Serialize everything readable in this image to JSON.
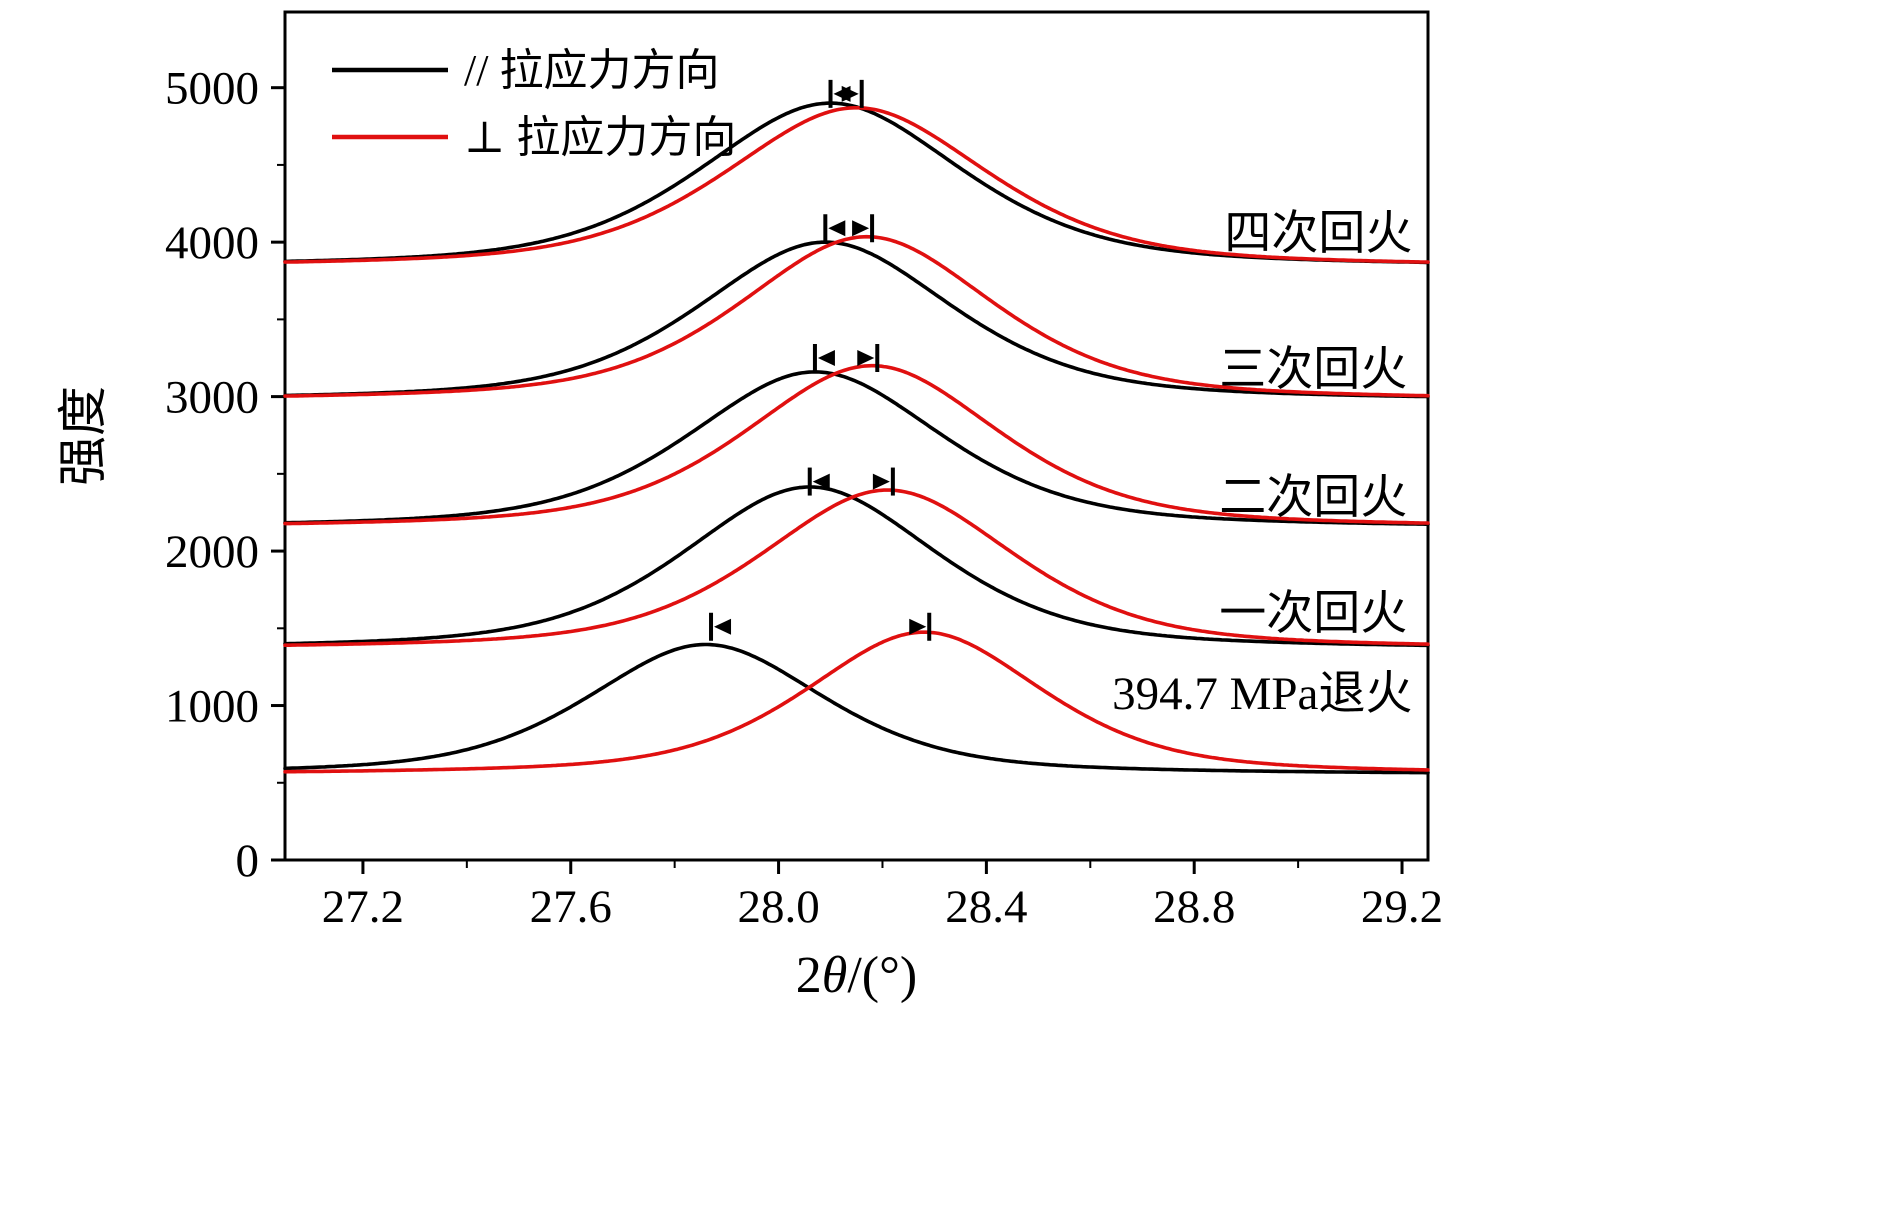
{
  "chart_data": {
    "type": "line",
    "title": "",
    "xlabel": "2θ/(°)",
    "ylabel": "强度",
    "xlim": [
      27.05,
      29.25
    ],
    "ylim": [
      0,
      5490
    ],
    "xticks": [
      "27.2",
      "27.6",
      "28.0",
      "28.4",
      "28.8",
      "29.2"
    ],
    "xtick_values": [
      27.2,
      27.6,
      28.0,
      28.4,
      28.8,
      29.2
    ],
    "minor_xtick_values": [
      27.4,
      27.8,
      28.2,
      28.6,
      29.0
    ],
    "yticks": [
      "0",
      "1000",
      "2000",
      "3000",
      "4000",
      "5000"
    ],
    "ytick_values": [
      0,
      1000,
      2000,
      3000,
      4000,
      5000
    ],
    "minor_ytick_values": [
      500,
      1500,
      2500,
      3500,
      4500
    ],
    "grid": false,
    "colors": {
      "parallel": "#000000",
      "perpendicular": "#e01010"
    },
    "legend": {
      "position": "top-left",
      "entries": [
        {
          "series": "parallel",
          "label": "// 拉应力方向",
          "color": "#000000"
        },
        {
          "series": "perpendicular",
          "label": "⊥ 拉应力方向",
          "color": "#e01010"
        }
      ]
    },
    "groups": [
      {
        "label": "394.7 MPa退火",
        "label_anchor": {
          "x": 29.22,
          "y": 1080
        },
        "baseline": 550,
        "peaks": [
          {
            "series": "parallel",
            "center": 27.86,
            "amplitude": 845,
            "hwhm": 0.27
          },
          {
            "series": "perpendicular",
            "center": 28.28,
            "amplitude": 925,
            "hwhm": 0.27
          }
        ],
        "peak_markers": {
          "left_x": 27.87,
          "right_x": 28.29,
          "y": 1510
        }
      },
      {
        "label": "一次回火",
        "label_anchor": {
          "x": 29.21,
          "y": 1600
        },
        "baseline": 1360,
        "peaks": [
          {
            "series": "parallel",
            "center": 28.06,
            "amplitude": 1055,
            "hwhm": 0.29
          },
          {
            "series": "perpendicular",
            "center": 28.21,
            "amplitude": 1035,
            "hwhm": 0.29
          }
        ],
        "peak_markers": {
          "left_x": 28.06,
          "right_x": 28.22,
          "y": 2450
        }
      },
      {
        "label": "二次回火",
        "label_anchor": {
          "x": 29.21,
          "y": 2350
        },
        "baseline": 2145,
        "peaks": [
          {
            "series": "parallel",
            "center": 28.07,
            "amplitude": 1015,
            "hwhm": 0.29
          },
          {
            "series": "perpendicular",
            "center": 28.18,
            "amplitude": 1055,
            "hwhm": 0.29
          }
        ],
        "peak_markers": {
          "left_x": 28.07,
          "right_x": 28.19,
          "y": 3250
        }
      },
      {
        "label": "三次回火",
        "label_anchor": {
          "x": 29.21,
          "y": 3180
        },
        "baseline": 2970,
        "peaks": [
          {
            "series": "parallel",
            "center": 28.09,
            "amplitude": 1030,
            "hwhm": 0.29
          },
          {
            "series": "perpendicular",
            "center": 28.17,
            "amplitude": 1065,
            "hwhm": 0.29
          }
        ],
        "peak_markers": {
          "left_x": 28.09,
          "right_x": 28.18,
          "y": 4090
        }
      },
      {
        "label": "四次回火",
        "label_anchor": {
          "x": 29.22,
          "y": 4060
        },
        "baseline": 3835,
        "peaks": [
          {
            "series": "parallel",
            "center": 28.1,
            "amplitude": 1065,
            "hwhm": 0.3
          },
          {
            "series": "perpendicular",
            "center": 28.15,
            "amplitude": 1035,
            "hwhm": 0.3
          }
        ],
        "peak_markers": {
          "left_x": 28.1,
          "right_x": 28.16,
          "y": 4960
        }
      }
    ]
  }
}
